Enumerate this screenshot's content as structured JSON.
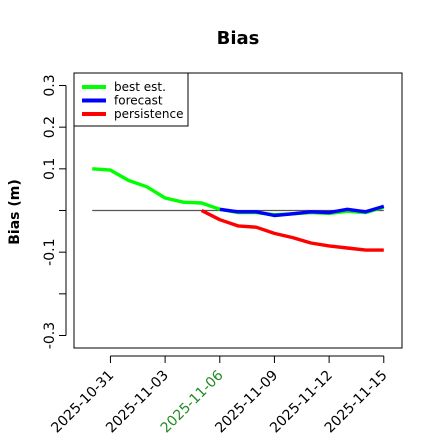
{
  "chart_data": {
    "type": "line",
    "title": "Bias",
    "xlabel": "",
    "ylabel": "Bias (m)",
    "ylim": [
      -0.33,
      0.33
    ],
    "xlim": [
      "2025-10-29",
      "2025-11-16"
    ],
    "yticks": [
      {
        "value": 0.3,
        "label": "0.3"
      },
      {
        "value": 0.2,
        "label": "0.2"
      },
      {
        "value": 0.1,
        "label": "0.1"
      },
      {
        "value": 0.0,
        "label": ""
      },
      {
        "value": -0.1,
        "label": "-0.1"
      },
      {
        "value": -0.2,
        "label": ""
      },
      {
        "value": -0.3,
        "label": "-0.3"
      }
    ],
    "xticks": [
      {
        "date": "2025-10-31",
        "label": "2025-10-31",
        "color": "#000000"
      },
      {
        "date": "2025-11-03",
        "label": "2025-11-03",
        "color": "#000000"
      },
      {
        "date": "2025-11-06",
        "label": "2025-11-06",
        "color": "#228B22"
      },
      {
        "date": "2025-11-09",
        "label": "2025-11-09",
        "color": "#000000"
      },
      {
        "date": "2025-11-12",
        "label": "2025-11-12",
        "color": "#000000"
      },
      {
        "date": "2025-11-15",
        "label": "2025-11-15",
        "color": "#000000"
      }
    ],
    "reference_line": {
      "y": 0.0,
      "from": "2025-10-30",
      "to": "2025-11-15",
      "color": "#555555"
    },
    "legend": {
      "position": "top-left"
    },
    "series": [
      {
        "name": "best est.",
        "color": "#00ff00",
        "x": [
          "2025-10-30",
          "2025-10-31",
          "2025-11-01",
          "2025-11-02",
          "2025-11-03",
          "2025-11-04",
          "2025-11-05",
          "2025-11-06",
          "2025-11-07",
          "2025-11-08",
          "2025-11-09",
          "2025-11-10",
          "2025-11-11",
          "2025-11-12",
          "2025-11-13",
          "2025-11-14",
          "2025-11-15"
        ],
        "values": [
          0.1,
          0.097,
          0.072,
          0.057,
          0.03,
          0.02,
          0.018,
          0.003,
          -0.005,
          -0.005,
          -0.01,
          -0.008,
          -0.005,
          -0.007,
          -0.002,
          -0.005,
          0.008
        ]
      },
      {
        "name": "forecast",
        "color": "#0000ff",
        "x": [
          "2025-11-06",
          "2025-11-07",
          "2025-11-08",
          "2025-11-09",
          "2025-11-10",
          "2025-11-11",
          "2025-11-12",
          "2025-11-13",
          "2025-11-14",
          "2025-11-15"
        ],
        "values": [
          0.003,
          -0.003,
          -0.003,
          -0.012,
          -0.008,
          -0.003,
          -0.005,
          0.003,
          -0.003,
          0.01
        ]
      },
      {
        "name": "persistence",
        "color": "#ff0000",
        "x": [
          "2025-11-05",
          "2025-11-06",
          "2025-11-07",
          "2025-11-08",
          "2025-11-09",
          "2025-11-10",
          "2025-11-11",
          "2025-11-12",
          "2025-11-13",
          "2025-11-14",
          "2025-11-15"
        ],
        "values": [
          0.0,
          -0.022,
          -0.037,
          -0.04,
          -0.055,
          -0.065,
          -0.078,
          -0.085,
          -0.09,
          -0.095,
          -0.095
        ]
      }
    ]
  }
}
